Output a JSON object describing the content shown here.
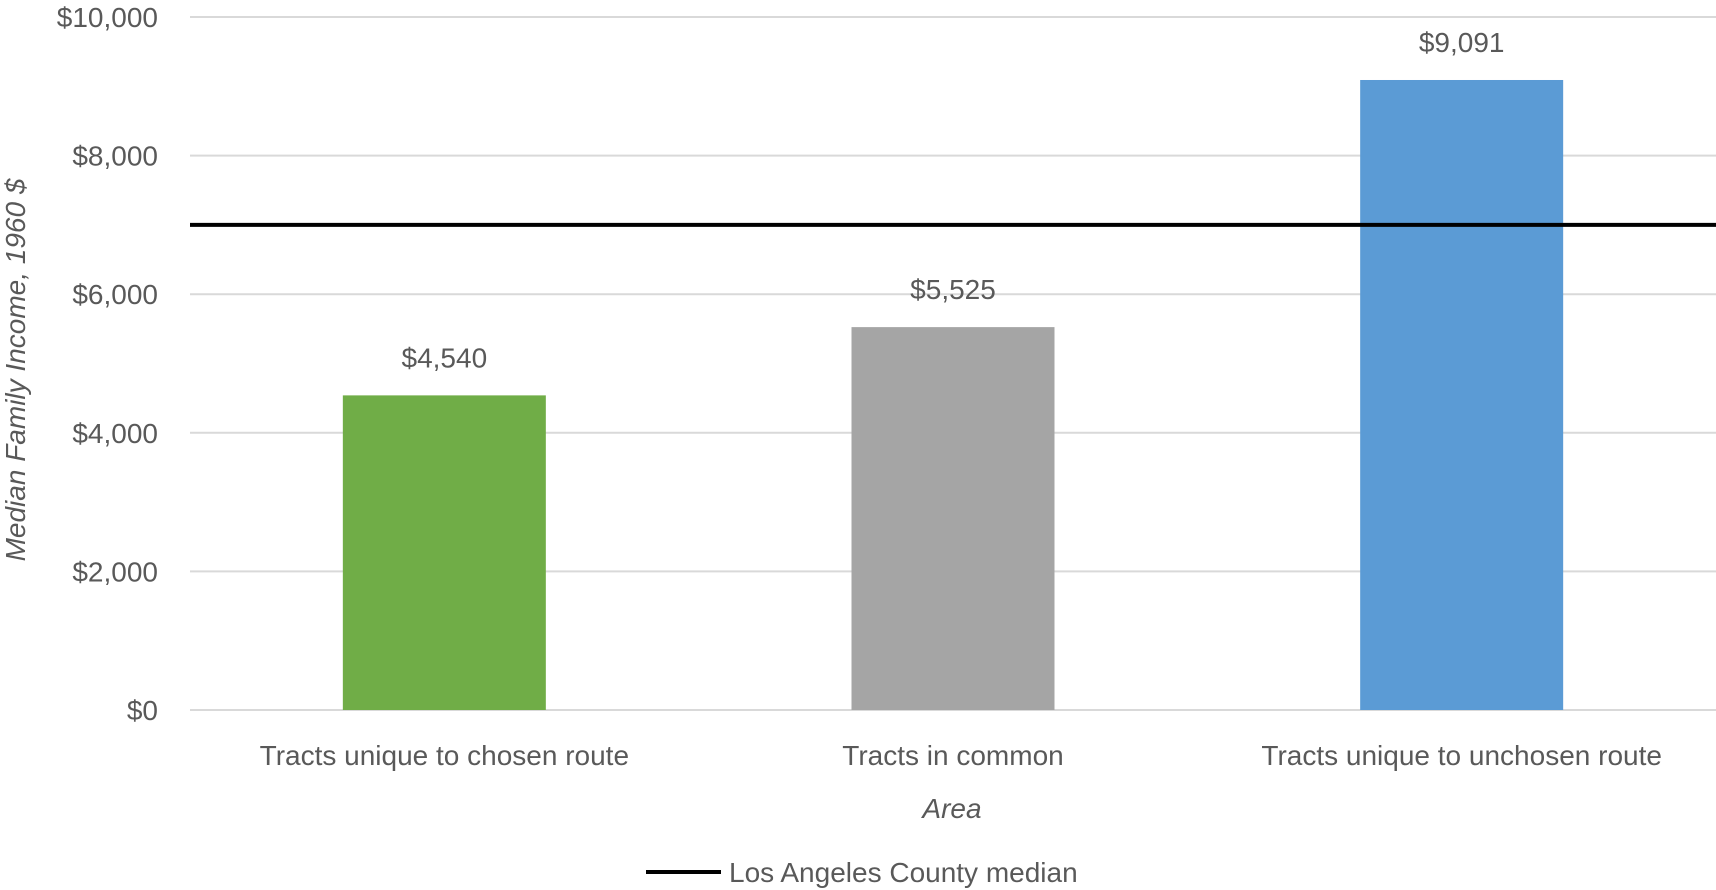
{
  "chart_data": {
    "type": "bar",
    "categories": [
      "Tracts unique to chosen route",
      "Tracts in common",
      "Tracts unique to unchosen route"
    ],
    "values": [
      4540,
      5525,
      9091
    ],
    "data_labels": [
      "$4,540",
      "$5,525",
      "$9,091"
    ],
    "bar_colors": [
      "#70ad47",
      "#a5a5a5",
      "#5b9bd5"
    ],
    "title": "",
    "xlabel": "Area",
    "ylabel": "Median Family Income, 1960 $",
    "ylim": [
      0,
      10000
    ],
    "yticks": [
      0,
      2000,
      4000,
      6000,
      8000,
      10000
    ],
    "ytick_labels": [
      "$0",
      "$2,000",
      "$4,000",
      "$6,000",
      "$8,000",
      "$10,000"
    ],
    "reference_line": {
      "value": 7000,
      "label": "Los Angeles County median",
      "color": "#000000"
    },
    "grid": true,
    "legend": {
      "position": "bottom",
      "entries": [
        "Los Angeles County median"
      ]
    }
  }
}
